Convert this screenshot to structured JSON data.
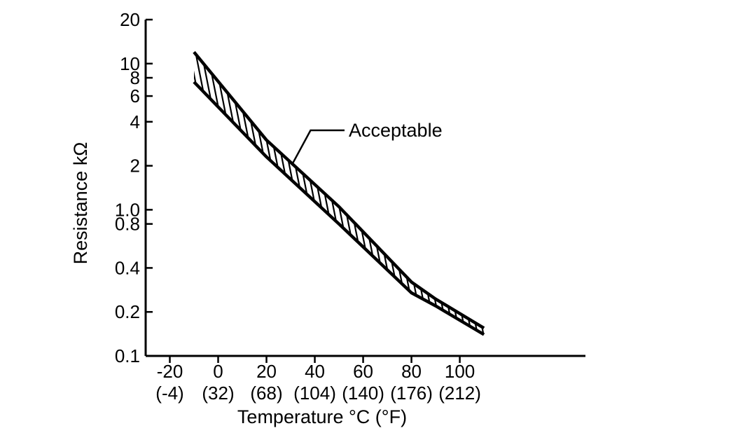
{
  "chart_data": {
    "type": "area",
    "title": "",
    "xlabel": "Temperature °C (°F)",
    "ylabel": "Resistance kΩ",
    "y_scale": "log",
    "xlim": [
      -30,
      152
    ],
    "ylim": [
      0.1,
      20
    ],
    "grid": false,
    "x_ticks": [
      {
        "value": -20,
        "label": "-20",
        "sublabel": "(-4)"
      },
      {
        "value": 0,
        "label": "0",
        "sublabel": "(32)"
      },
      {
        "value": 20,
        "label": "20",
        "sublabel": "(68)"
      },
      {
        "value": 40,
        "label": "40",
        "sublabel": "(104)"
      },
      {
        "value": 60,
        "label": "60",
        "sublabel": "(140)"
      },
      {
        "value": 80,
        "label": "80",
        "sublabel": "(176)"
      },
      {
        "value": 100,
        "label": "100",
        "sublabel": "(212)"
      }
    ],
    "y_ticks": [
      {
        "value": 20,
        "label": "20"
      },
      {
        "value": 10,
        "label": "10"
      },
      {
        "value": 8,
        "label": "8"
      },
      {
        "value": 6,
        "label": "6"
      },
      {
        "value": 4,
        "label": "4"
      },
      {
        "value": 2,
        "label": "2"
      },
      {
        "value": 1.0,
        "label": "1.0"
      },
      {
        "value": 0.8,
        "label": "0.8"
      },
      {
        "value": 0.4,
        "label": "0.4"
      },
      {
        "value": 0.2,
        "label": "0.2"
      },
      {
        "value": 0.1,
        "label": "0.1"
      }
    ],
    "series": [
      {
        "name": "Acceptable",
        "x": [
          -10,
          20,
          50,
          80,
          90,
          110
        ],
        "upper": [
          12,
          3.0,
          1.05,
          0.32,
          0.245,
          0.155
        ],
        "lower": [
          7.5,
          2.3,
          0.8,
          0.27,
          0.22,
          0.14
        ]
      }
    ],
    "annotations": [
      {
        "text": "Acceptable",
        "x": 31,
        "y": 2.1
      }
    ]
  }
}
